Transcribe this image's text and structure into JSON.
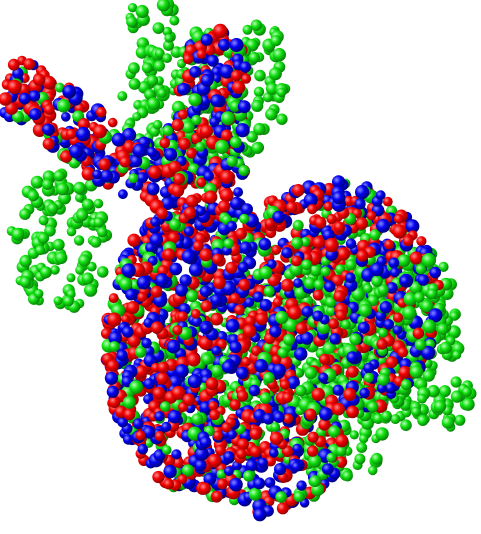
{
  "image": {
    "subject": "point-cloud-bunny",
    "background_color": "#ffffff",
    "colors": {
      "red": "#ff0000",
      "green": "#00e600",
      "blue": "#0000ff"
    }
  }
}
